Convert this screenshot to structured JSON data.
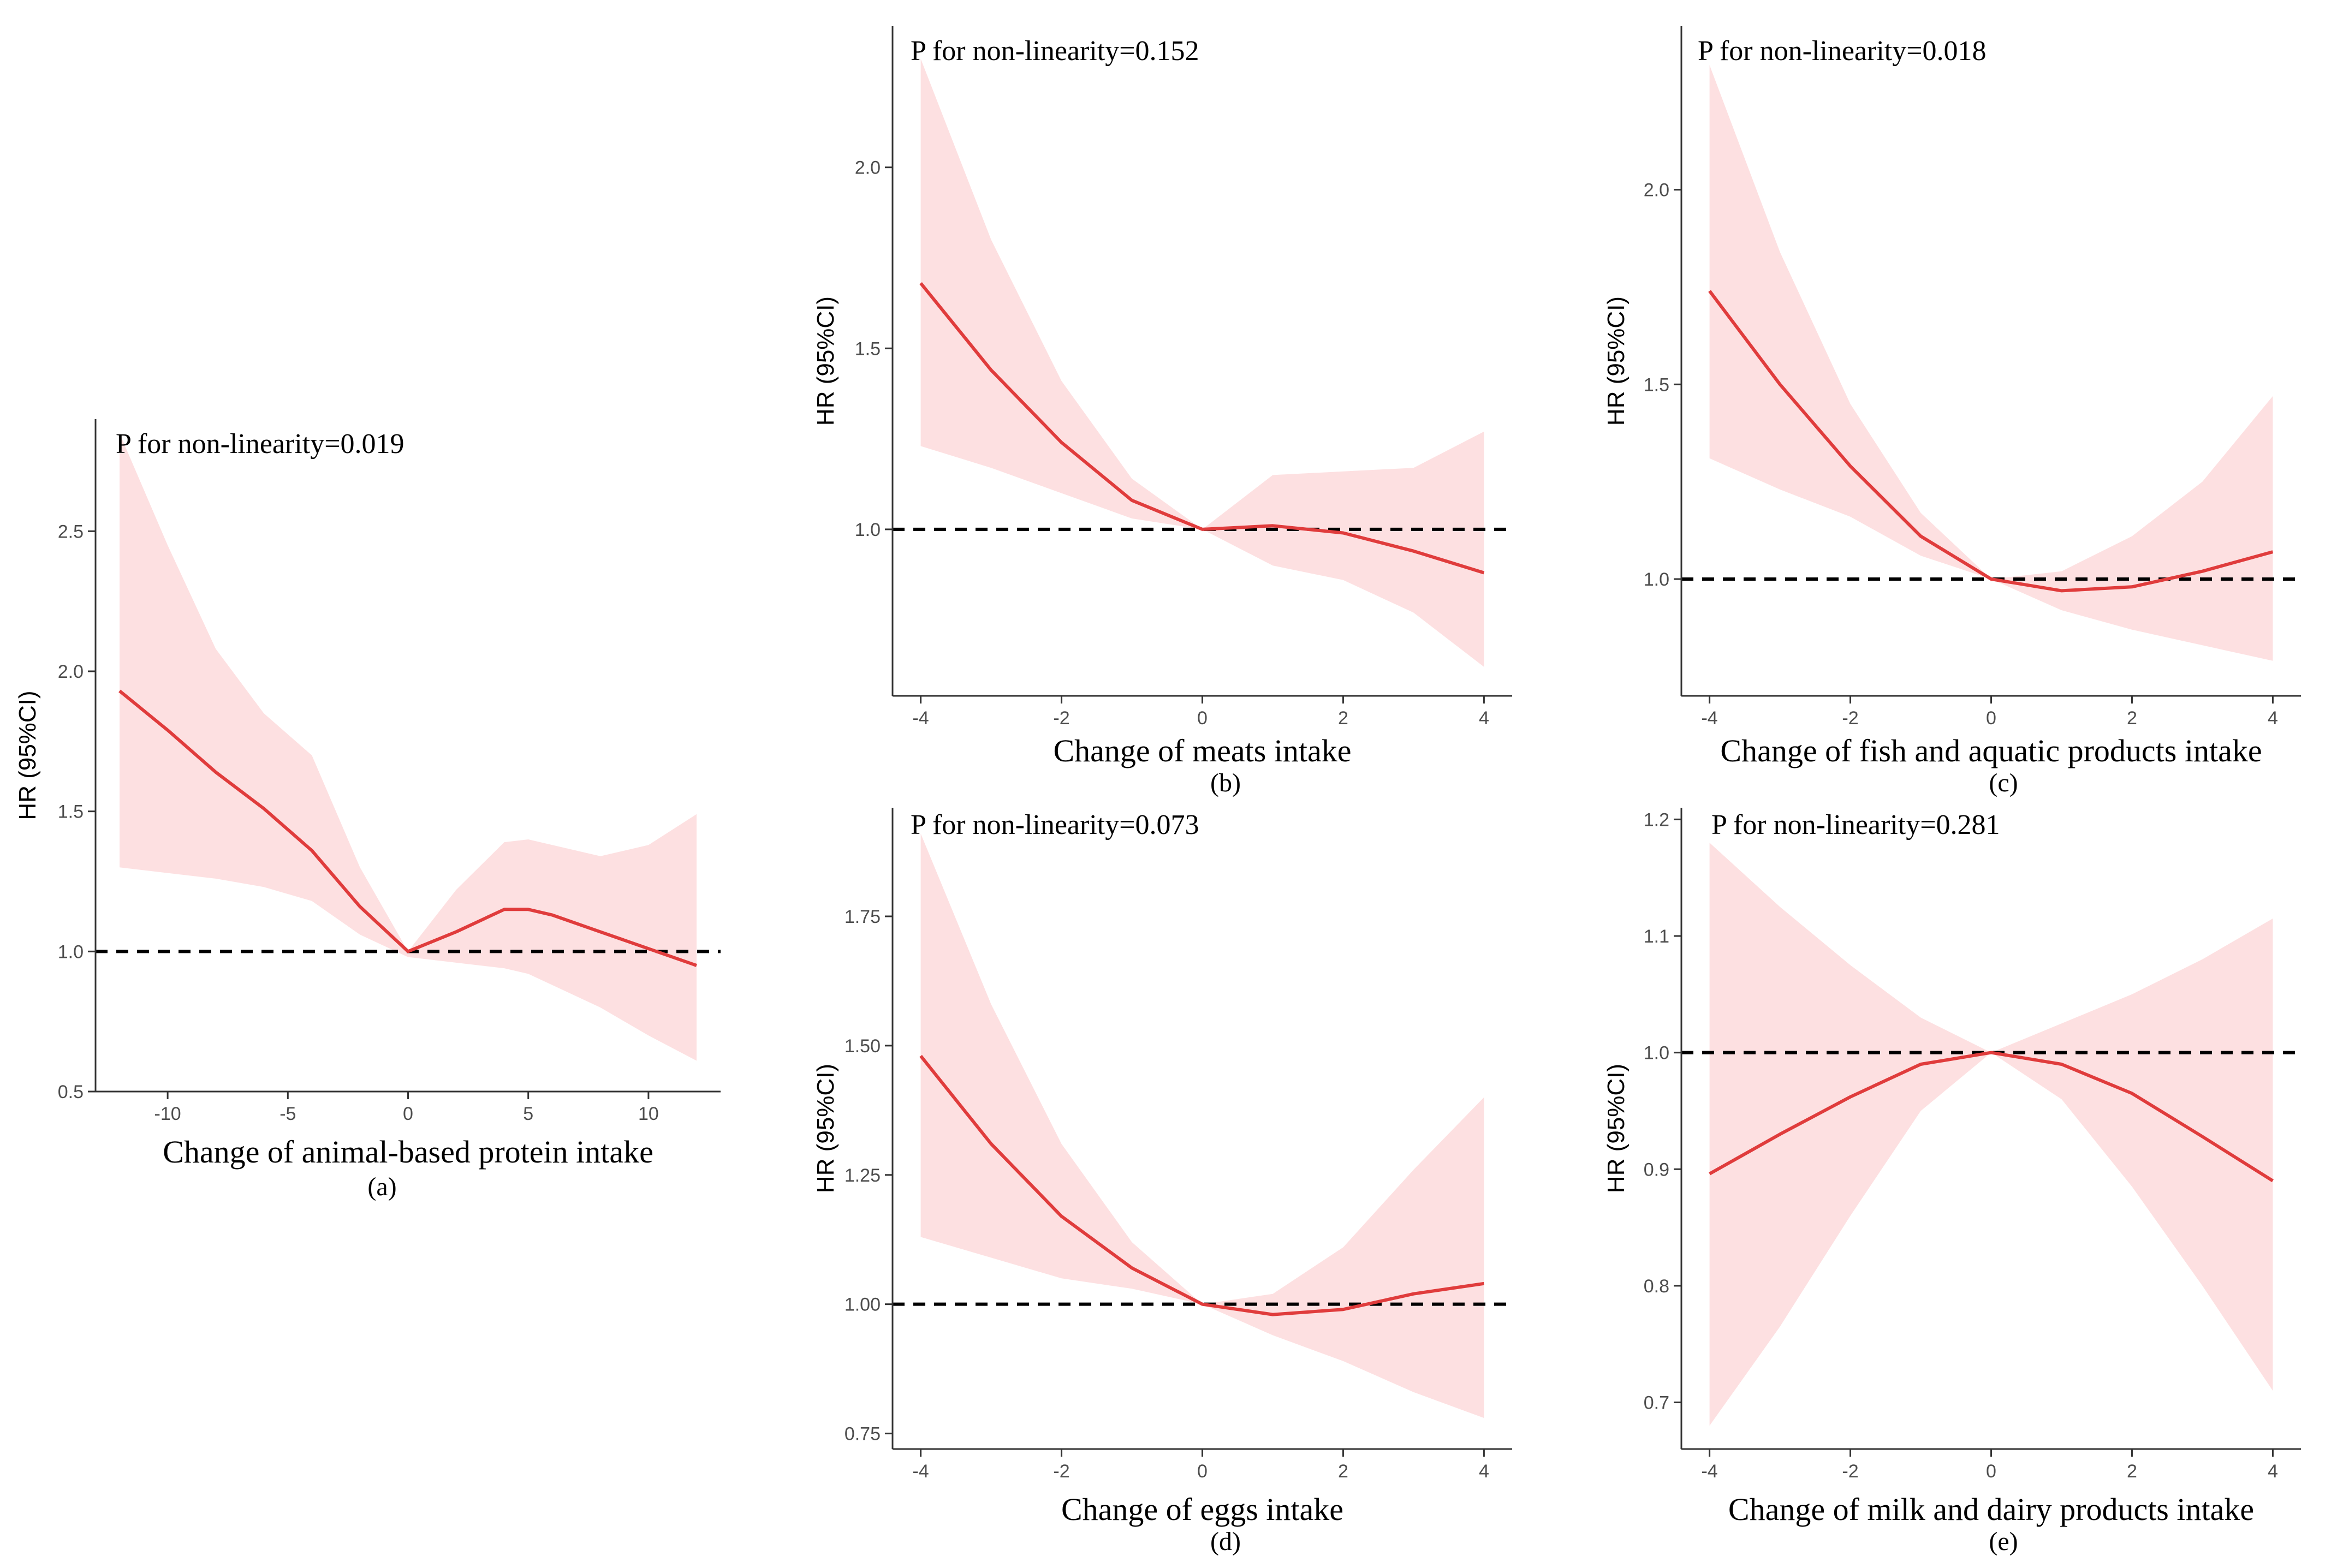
{
  "chart_data": [
    {
      "type": "line",
      "panel_label": "(a)",
      "annotation": "P for non-linearity=0.019",
      "xlabel": "Change of animal-based protein intake",
      "ylabel": "HR (95%CI)",
      "xlim": [
        -13,
        13
      ],
      "ylim": [
        0.5,
        2.9
      ],
      "xticks": [
        -10,
        -5,
        0,
        5,
        10
      ],
      "xtick_labels": [
        "-10",
        "-5",
        "0",
        "5",
        "10"
      ],
      "yticks": [
        0.5,
        1.0,
        1.5,
        2.0,
        2.5
      ],
      "ytick_labels": [
        "0.5",
        "1.0",
        "1.5",
        "2.0",
        "2.5"
      ],
      "reference_line": 1.0,
      "x": [
        -12,
        -10,
        -8,
        -6,
        -4,
        -2,
        0,
        2,
        4,
        5,
        6,
        8,
        10,
        12
      ],
      "hr": [
        1.93,
        1.79,
        1.64,
        1.51,
        1.36,
        1.16,
        1.0,
        1.07,
        1.15,
        1.15,
        1.13,
        1.07,
        1.01,
        0.95
      ],
      "lower": [
        1.3,
        1.28,
        1.26,
        1.23,
        1.18,
        1.06,
        0.98,
        0.96,
        0.94,
        0.92,
        0.88,
        0.8,
        0.7,
        0.61
      ],
      "upper": [
        2.85,
        2.45,
        2.08,
        1.85,
        1.7,
        1.3,
        1.0,
        1.22,
        1.39,
        1.4,
        1.38,
        1.34,
        1.38,
        1.49
      ]
    },
    {
      "type": "line",
      "panel_label": "(b)",
      "annotation": "P for non-linearity=0.152",
      "xlabel": "Change of meats intake",
      "ylabel": "HR (95%CI)",
      "xlim": [
        -4.4,
        4.4
      ],
      "ylim": [
        0.54,
        2.39
      ],
      "xticks": [
        -4,
        -2,
        0,
        2,
        4
      ],
      "xtick_labels": [
        "-4",
        "-2",
        "0",
        "2",
        "4"
      ],
      "yticks": [
        1.0,
        1.5,
        2.0
      ],
      "ytick_labels": [
        "1.0",
        "1.5",
        "2.0"
      ],
      "reference_line": 1.0,
      "x": [
        -4,
        -3,
        -2,
        -1,
        0,
        1,
        2,
        3,
        4
      ],
      "hr": [
        1.68,
        1.44,
        1.24,
        1.08,
        1.0,
        1.01,
        0.99,
        0.94,
        0.88
      ],
      "lower": [
        1.23,
        1.17,
        1.1,
        1.03,
        1.0,
        0.9,
        0.86,
        0.77,
        0.62
      ],
      "upper": [
        2.3,
        1.8,
        1.41,
        1.14,
        1.0,
        1.15,
        1.16,
        1.17,
        1.27
      ]
    },
    {
      "type": "line",
      "panel_label": "(c)",
      "annotation": "P for non-linearity=0.018",
      "xlabel": "Change of fish and aquatic products intake",
      "ylabel": "HR (95%CI)",
      "xlim": [
        -4.4,
        4.4
      ],
      "ylim": [
        0.7,
        2.42
      ],
      "xticks": [
        -4,
        -2,
        0,
        2,
        4
      ],
      "xtick_labels": [
        "-4",
        "-2",
        "0",
        "2",
        "4"
      ],
      "yticks": [
        1.0,
        1.5,
        2.0
      ],
      "ytick_labels": [
        "1.0",
        "1.5",
        "2.0"
      ],
      "reference_line": 1.0,
      "x": [
        -4,
        -3,
        -2,
        -1,
        0,
        1,
        2,
        3,
        4
      ],
      "hr": [
        1.74,
        1.5,
        1.29,
        1.11,
        1.0,
        0.97,
        0.98,
        1.02,
        1.07
      ],
      "lower": [
        1.31,
        1.23,
        1.16,
        1.06,
        1.0,
        0.92,
        0.87,
        0.83,
        0.79
      ],
      "upper": [
        2.32,
        1.84,
        1.45,
        1.17,
        1.0,
        1.02,
        1.11,
        1.25,
        1.47
      ]
    },
    {
      "type": "line",
      "panel_label": "(d)",
      "annotation": "P for non-linearity=0.073",
      "xlabel": "Change of eggs intake",
      "ylabel": "HR (95%CI)",
      "xlim": [
        -4.4,
        4.4
      ],
      "ylim": [
        0.72,
        1.96
      ],
      "xticks": [
        -4,
        -2,
        0,
        2,
        4
      ],
      "xtick_labels": [
        "-4",
        "-2",
        "0",
        "2",
        "4"
      ],
      "yticks": [
        0.75,
        1.0,
        1.25,
        1.5,
        1.75
      ],
      "ytick_labels": [
        "0.75",
        "1.00",
        "1.25",
        "1.50",
        "1.75"
      ],
      "reference_line": 1.0,
      "x": [
        -4,
        -3,
        -2,
        -1,
        0,
        1,
        2,
        3,
        4
      ],
      "hr": [
        1.48,
        1.31,
        1.17,
        1.07,
        1.0,
        0.98,
        0.99,
        1.02,
        1.04
      ],
      "lower": [
        1.13,
        1.09,
        1.05,
        1.03,
        1.0,
        0.94,
        0.89,
        0.83,
        0.78
      ],
      "upper": [
        1.91,
        1.58,
        1.31,
        1.12,
        1.0,
        1.02,
        1.11,
        1.26,
        1.4
      ]
    },
    {
      "type": "line",
      "panel_label": "(e)",
      "annotation": "P for non-linearity=0.281",
      "xlabel": "Change of milk and dairy products intake",
      "ylabel": "HR (95%CI)",
      "xlim": [
        -4.4,
        4.4
      ],
      "ylim": [
        0.66,
        1.21
      ],
      "xticks": [
        -4,
        -2,
        0,
        2,
        4
      ],
      "xtick_labels": [
        "-4",
        "-2",
        "0",
        "2",
        "4"
      ],
      "yticks": [
        0.7,
        0.8,
        0.9,
        1.0,
        1.1,
        1.2
      ],
      "ytick_labels": [
        "0.7",
        "0.8",
        "0.9",
        "1.0",
        "1.1",
        "1.2"
      ],
      "reference_line": 1.0,
      "x": [
        -4,
        -3,
        -2,
        -1,
        0,
        1,
        2,
        3,
        4
      ],
      "hr": [
        0.896,
        0.93,
        0.962,
        0.99,
        1.0,
        0.99,
        0.965,
        0.928,
        0.89
      ],
      "lower": [
        0.68,
        0.765,
        0.86,
        0.95,
        1.0,
        0.96,
        0.885,
        0.8,
        0.71
      ],
      "upper": [
        1.18,
        1.125,
        1.075,
        1.03,
        1.0,
        1.025,
        1.05,
        1.08,
        1.115
      ]
    }
  ],
  "colors": {
    "curve": "#e03c3c",
    "band": "#fde0e1",
    "axis": "#333333",
    "reference": "#000000"
  }
}
